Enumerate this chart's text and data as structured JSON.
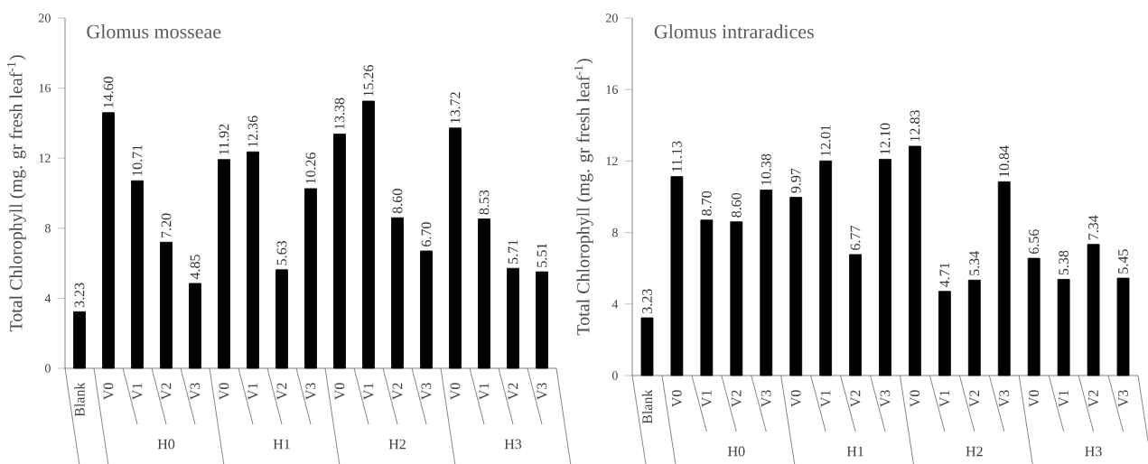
{
  "chart_data": [
    {
      "type": "bar",
      "title": "Glomus  mosseae",
      "ylabel": "Total Chlorophyll (mg. gr fresh leaf$^{-1}$)",
      "categories": [
        "Blank",
        "V0",
        "V1",
        "V2",
        "V3",
        "V0",
        "V1",
        "V2",
        "V3",
        "V0",
        "V1",
        "V2",
        "V3",
        "V0",
        "V1",
        "V2",
        "V3"
      ],
      "values": [
        3.23,
        14.6,
        10.71,
        7.2,
        4.85,
        11.92,
        12.36,
        5.63,
        10.26,
        13.38,
        15.26,
        8.6,
        6.7,
        13.72,
        8.53,
        5.71,
        5.51
      ],
      "value_labels": [
        "3.23",
        "14.60",
        "10.71",
        "7.20",
        "4.85",
        "11.92",
        "12.36",
        "5.63",
        "10.26",
        "13.38",
        "15.26",
        "8.60",
        "6.70",
        "13.72",
        "8.53",
        "5.71",
        "5.51"
      ],
      "color": "#000000",
      "ylim": [
        0,
        20
      ],
      "yticks": [
        0,
        4,
        8,
        12,
        16,
        20
      ],
      "annotations": [
        "H0",
        "H1",
        "H2",
        "H3"
      ]
    },
    {
      "type": "bar",
      "title": "Glomus intraradices",
      "ylabel": "Total Chlorophyll (mg. gr fresh leaf$^{-1}$)",
      "categories": [
        "Blank",
        "V0",
        "V1",
        "V2",
        "V3",
        "V0",
        "V1",
        "V2",
        "V3",
        "V0",
        "V1",
        "V2",
        "V3",
        "V0",
        "V1",
        "V2",
        "V3"
      ],
      "values": [
        3.23,
        11.13,
        8.7,
        8.6,
        10.38,
        9.97,
        12.01,
        6.77,
        12.1,
        12.83,
        4.71,
        5.34,
        10.84,
        6.56,
        5.38,
        7.34,
        5.45
      ],
      "value_labels": [
        "3.23",
        "11.13",
        "8.70",
        "8.60",
        "10.38",
        "9.97",
        "12.01",
        "6.77",
        "12.10",
        "12.83",
        "4.71",
        "5.34",
        "10.84",
        "6.56",
        "5.38",
        "7.34",
        "5.45"
      ],
      "color": "#000000",
      "ylim": [
        0,
        20
      ],
      "yticks": [
        0,
        4,
        8,
        12,
        16,
        20
      ],
      "annotations": [
        "H0",
        "H1",
        "H2",
        "H3"
      ]
    }
  ]
}
